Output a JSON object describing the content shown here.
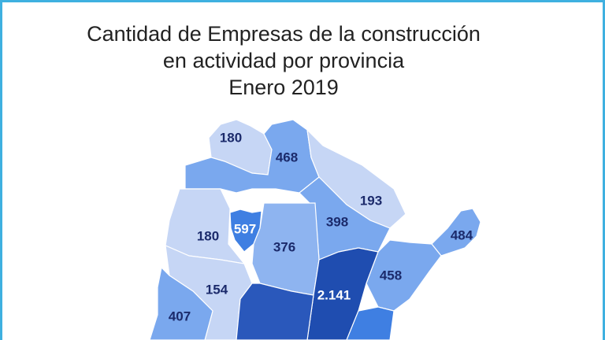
{
  "title": [
    "Cantidad de Empresas de la construcción",
    "en actividad por provincia",
    "Enero 2019"
  ],
  "regions": [
    {
      "label": "180"
    },
    {
      "label": "468"
    },
    {
      "label": "193"
    },
    {
      "label": "398"
    },
    {
      "label": "484"
    },
    {
      "label": "180"
    },
    {
      "label": "597"
    },
    {
      "label": "376"
    },
    {
      "label": "458"
    },
    {
      "label": "154"
    },
    {
      "label": "2.141"
    },
    {
      "label": "407"
    }
  ]
}
